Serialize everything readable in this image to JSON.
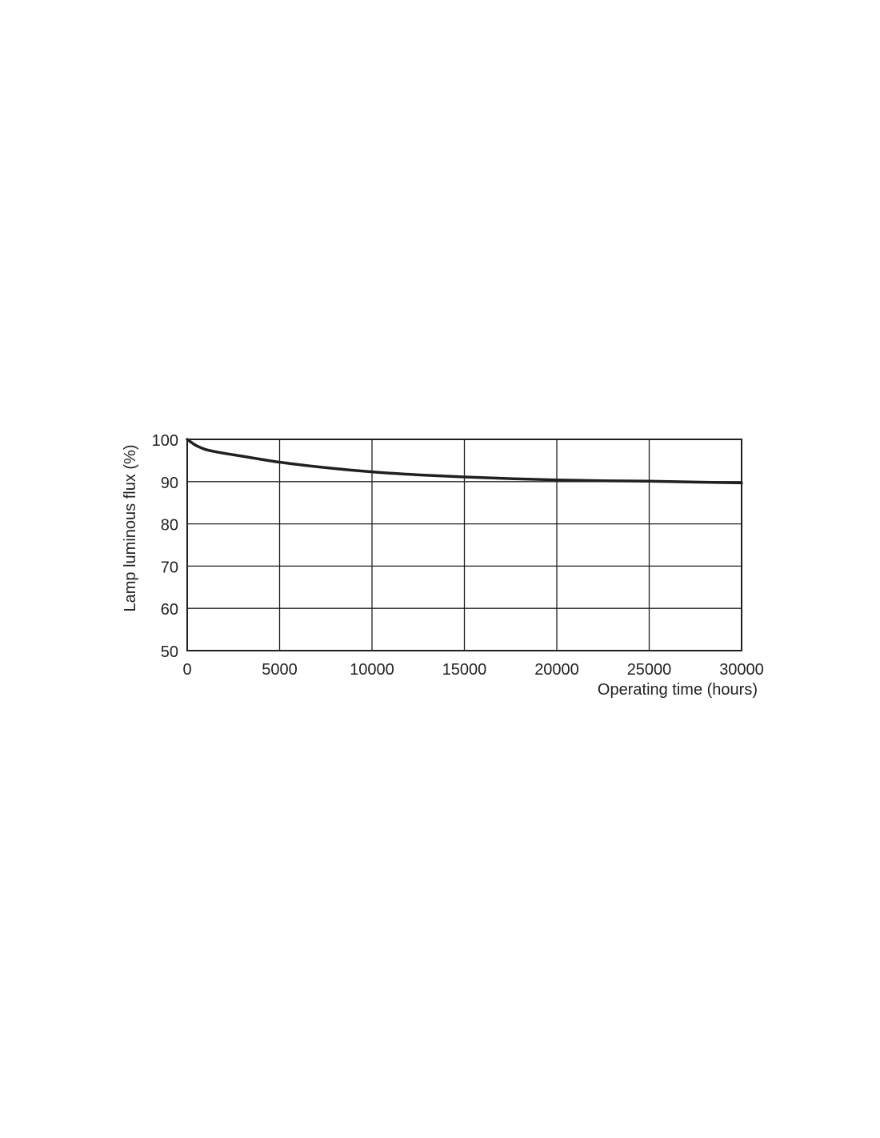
{
  "chart_data": {
    "type": "line",
    "title": "",
    "xlabel": "Operating time (hours)",
    "ylabel": "Lamp luminous flux (%)",
    "xlim": [
      0,
      30000
    ],
    "ylim": [
      50,
      100
    ],
    "xticks": [
      "0",
      "5000",
      "10000",
      "15000",
      "20000",
      "25000",
      "30000"
    ],
    "yticks": [
      "50",
      "60",
      "70",
      "80",
      "90",
      "100"
    ],
    "grid": true,
    "line_color": "#231f20",
    "series": [
      {
        "x": [
          0,
          250,
          500,
          1000,
          1500,
          2000,
          3000,
          5000,
          7500,
          10000,
          12500,
          15000,
          17500,
          20000,
          22500,
          25000,
          27500,
          30000
        ],
        "y": [
          100,
          99.2,
          98.5,
          97.6,
          97.1,
          96.7,
          96.0,
          94.6,
          93.3,
          92.3,
          91.6,
          91.1,
          90.7,
          90.4,
          90.2,
          90.1,
          89.9,
          89.7
        ]
      }
    ]
  }
}
